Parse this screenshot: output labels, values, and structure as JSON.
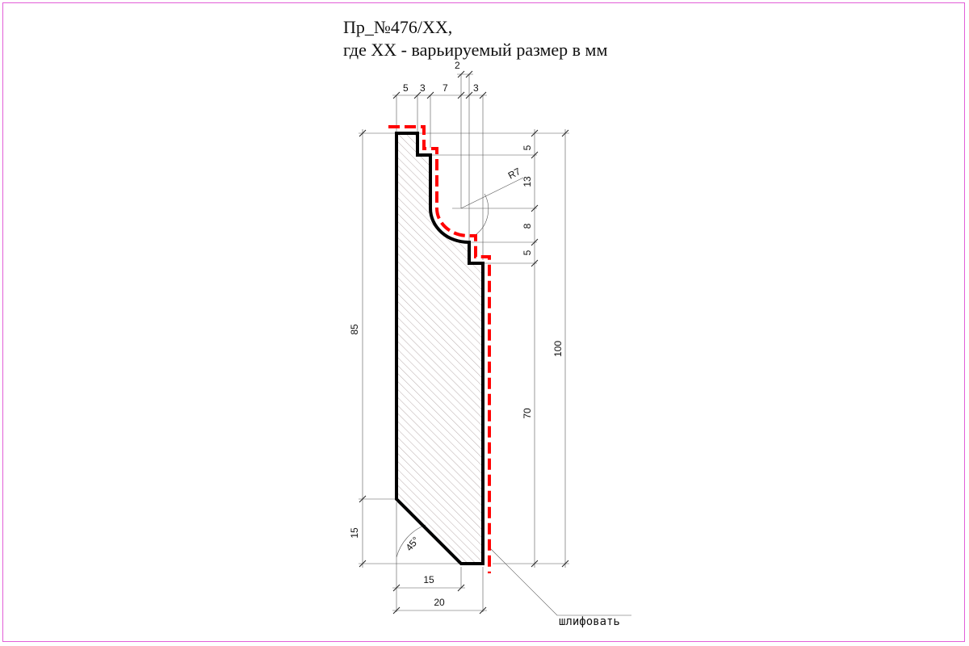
{
  "title": {
    "line1": "Пр_№476/XX,",
    "line2": "где XX - варьируемый размер в мм"
  },
  "dimensions": {
    "top_2": "2",
    "top_5": "5",
    "top_3a": "3",
    "top_7": "7",
    "top_3b": "3",
    "right_5a": "5",
    "right_13": "13",
    "right_8": "8",
    "right_5b": "5",
    "right_70": "70",
    "total_100": "100",
    "left_85": "85",
    "left_15": "15",
    "bottom_15": "15",
    "bottom_20": "20",
    "radius": "R7",
    "angle": "45°"
  },
  "annotation": {
    "grind": "шлифовать"
  },
  "colors": {
    "frame": "#e25fd8",
    "profile": "#000000",
    "grind_line": "#ff0000",
    "hatch": "#9a8a8a",
    "dimension": "#555555"
  }
}
